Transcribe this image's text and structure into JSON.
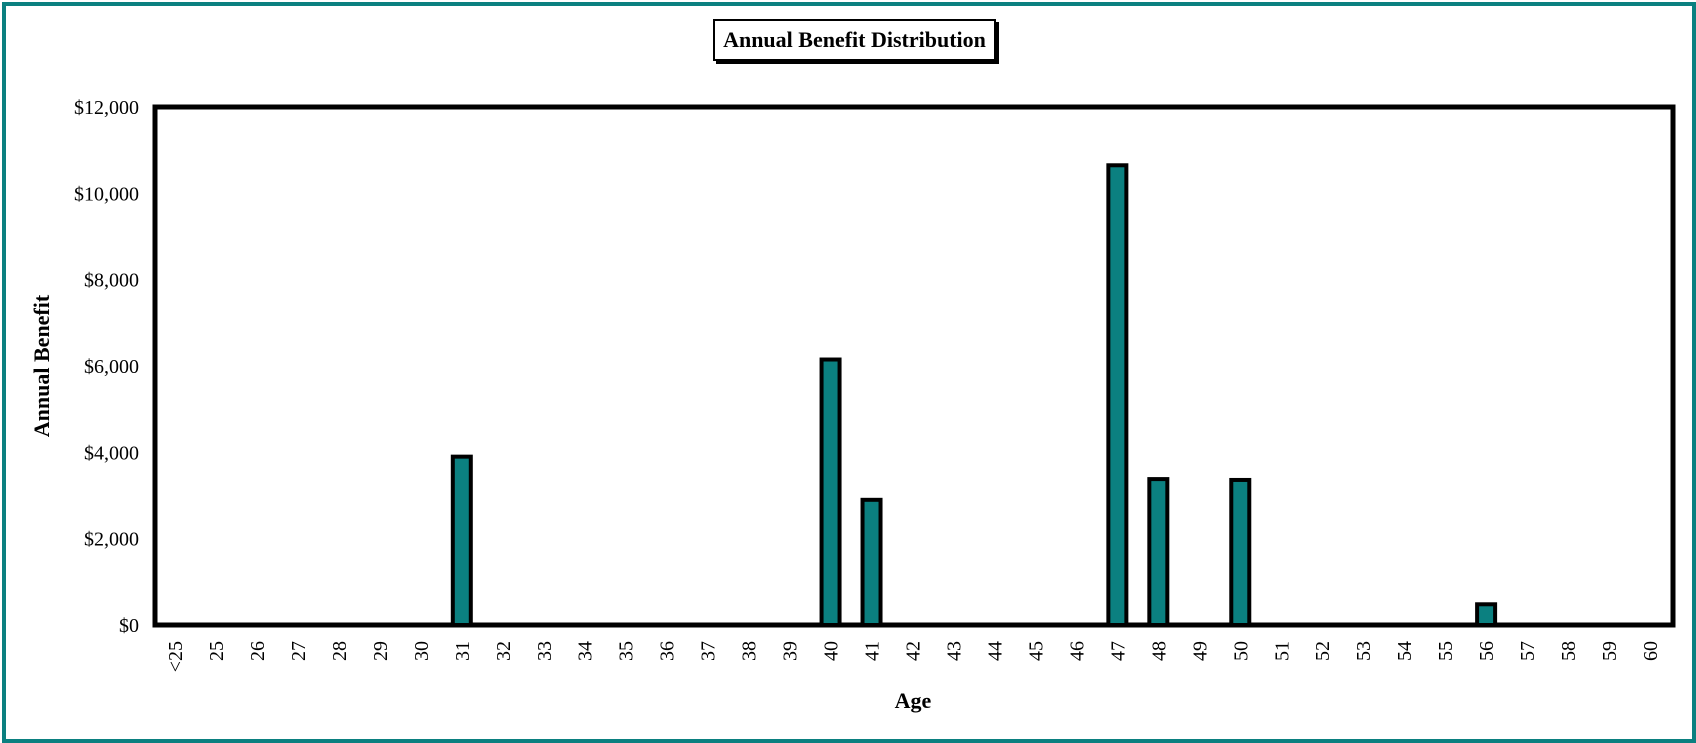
{
  "chart_data": {
    "type": "bar",
    "title": "Annual Benefit Distribution",
    "xlabel": "Age",
    "ylabel": "Annual Benefit",
    "ylim": [
      0,
      12000
    ],
    "yticks": [
      "$0",
      "$2,000",
      "$4,000",
      "$6,000",
      "$8,000",
      "$10,000",
      "$12,000"
    ],
    "ytick_values": [
      0,
      2000,
      4000,
      6000,
      8000,
      10000,
      12000
    ],
    "categories": [
      "<25",
      "25",
      "26",
      "27",
      "28",
      "29",
      "30",
      "31",
      "32",
      "33",
      "34",
      "35",
      "36",
      "37",
      "38",
      "39",
      "40",
      "41",
      "42",
      "43",
      "44",
      "45",
      "46",
      "47",
      "48",
      "49",
      "50",
      "51",
      "52",
      "53",
      "54",
      "55",
      "56",
      "57",
      "58",
      "59",
      "60"
    ],
    "values": [
      0,
      0,
      0,
      0,
      0,
      0,
      0,
      3900,
      0,
      0,
      0,
      0,
      0,
      0,
      0,
      0,
      6150,
      2900,
      0,
      0,
      0,
      0,
      0,
      10650,
      3380,
      0,
      3360,
      0,
      0,
      0,
      0,
      0,
      480,
      0,
      0,
      0,
      0
    ],
    "bar_color": "#0b8080",
    "grid": false,
    "legend": "none"
  }
}
